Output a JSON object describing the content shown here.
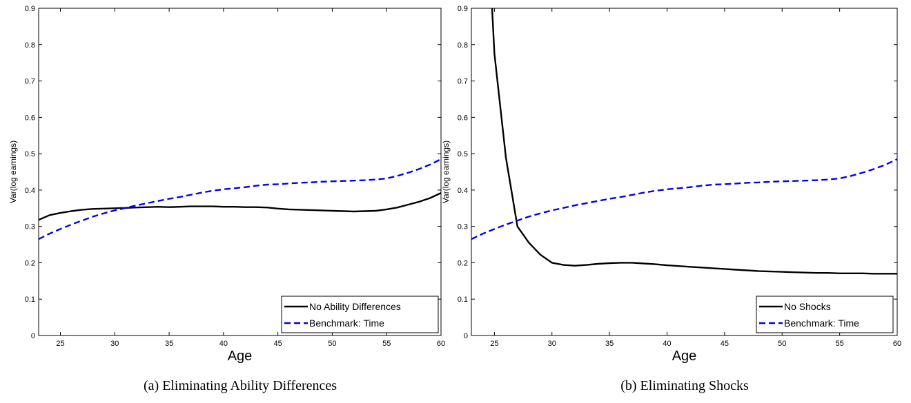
{
  "chart_data": [
    {
      "type": "line",
      "caption": "(a) Eliminating Ability Differences",
      "xlabel": "Age",
      "ylabel": "Var(log earnings)",
      "xlim": [
        23,
        60
      ],
      "ylim": [
        0,
        0.9
      ],
      "xticks": [
        25,
        30,
        35,
        40,
        45,
        50,
        55,
        60
      ],
      "yticks": [
        0,
        0.1,
        0.2,
        0.3,
        0.4,
        0.5,
        0.6,
        0.7,
        0.8,
        0.9
      ],
      "grid": false,
      "legend_position": "bottom-right",
      "series": [
        {
          "name": "No Ability Differences",
          "color": "#000000",
          "style": "solid",
          "x": [
            23,
            24,
            25,
            26,
            27,
            28,
            29,
            30,
            31,
            32,
            33,
            34,
            35,
            36,
            37,
            38,
            39,
            40,
            41,
            42,
            43,
            44,
            45,
            46,
            47,
            48,
            49,
            50,
            51,
            52,
            53,
            54,
            55,
            56,
            57,
            58,
            59,
            60
          ],
          "y": [
            0.318,
            0.331,
            0.337,
            0.342,
            0.346,
            0.348,
            0.349,
            0.35,
            0.351,
            0.352,
            0.353,
            0.354,
            0.353,
            0.354,
            0.355,
            0.355,
            0.355,
            0.354,
            0.354,
            0.353,
            0.353,
            0.352,
            0.349,
            0.347,
            0.346,
            0.345,
            0.344,
            0.343,
            0.342,
            0.341,
            0.342,
            0.343,
            0.347,
            0.352,
            0.36,
            0.368,
            0.378,
            0.392
          ]
        },
        {
          "name": "Benchmark: Time",
          "color": "#0000ee",
          "style": "dashed",
          "x": [
            23,
            24,
            25,
            26,
            27,
            28,
            29,
            30,
            31,
            32,
            33,
            34,
            35,
            36,
            37,
            38,
            39,
            40,
            41,
            42,
            43,
            44,
            45,
            46,
            47,
            48,
            49,
            50,
            51,
            52,
            53,
            54,
            55,
            56,
            57,
            58,
            59,
            60
          ],
          "y": [
            0.265,
            0.28,
            0.293,
            0.305,
            0.316,
            0.327,
            0.336,
            0.344,
            0.351,
            0.358,
            0.364,
            0.37,
            0.376,
            0.381,
            0.387,
            0.393,
            0.398,
            0.402,
            0.405,
            0.408,
            0.412,
            0.415,
            0.416,
            0.418,
            0.42,
            0.421,
            0.423,
            0.424,
            0.425,
            0.426,
            0.427,
            0.429,
            0.432,
            0.439,
            0.448,
            0.458,
            0.47,
            0.485
          ]
        }
      ]
    },
    {
      "type": "line",
      "caption": "(b) Eliminating Shocks",
      "xlabel": "Age",
      "ylabel": "Var(log earnings)",
      "xlim": [
        23,
        60
      ],
      "ylim": [
        0,
        0.9
      ],
      "xticks": [
        25,
        30,
        35,
        40,
        45,
        50,
        55,
        60
      ],
      "yticks": [
        0,
        0.1,
        0.2,
        0.3,
        0.4,
        0.5,
        0.6,
        0.7,
        0.8,
        0.9
      ],
      "grid": false,
      "legend_position": "bottom-right",
      "series": [
        {
          "name": "No Shocks",
          "color": "#000000",
          "style": "solid",
          "x": [
            24.8,
            25,
            26,
            27,
            28,
            29,
            30,
            31,
            32,
            33,
            34,
            35,
            36,
            37,
            38,
            39,
            40,
            41,
            42,
            43,
            44,
            45,
            46,
            47,
            48,
            49,
            50,
            51,
            52,
            53,
            54,
            55,
            56,
            57,
            58,
            59,
            60
          ],
          "y": [
            0.9,
            0.775,
            0.49,
            0.3,
            0.255,
            0.222,
            0.2,
            0.194,
            0.192,
            0.194,
            0.197,
            0.199,
            0.2,
            0.2,
            0.198,
            0.196,
            0.193,
            0.191,
            0.189,
            0.187,
            0.185,
            0.183,
            0.181,
            0.179,
            0.177,
            0.176,
            0.175,
            0.174,
            0.173,
            0.172,
            0.172,
            0.171,
            0.171,
            0.171,
            0.17,
            0.17,
            0.17
          ]
        },
        {
          "name": "Benchmark: Time",
          "color": "#0000ee",
          "style": "dashed",
          "x": [
            23,
            24,
            25,
            26,
            27,
            28,
            29,
            30,
            31,
            32,
            33,
            34,
            35,
            36,
            37,
            38,
            39,
            40,
            41,
            42,
            43,
            44,
            45,
            46,
            47,
            48,
            49,
            50,
            51,
            52,
            53,
            54,
            55,
            56,
            57,
            58,
            59,
            60
          ],
          "y": [
            0.265,
            0.28,
            0.293,
            0.305,
            0.316,
            0.327,
            0.336,
            0.344,
            0.351,
            0.358,
            0.364,
            0.37,
            0.376,
            0.381,
            0.387,
            0.393,
            0.398,
            0.402,
            0.405,
            0.408,
            0.412,
            0.415,
            0.416,
            0.418,
            0.42,
            0.421,
            0.423,
            0.424,
            0.425,
            0.426,
            0.427,
            0.429,
            0.432,
            0.439,
            0.448,
            0.458,
            0.47,
            0.485
          ]
        }
      ]
    }
  ]
}
